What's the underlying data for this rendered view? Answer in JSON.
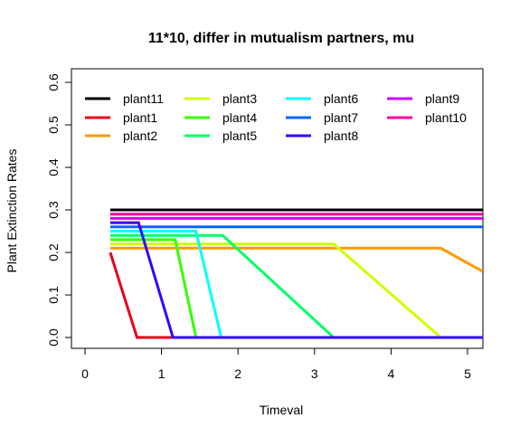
{
  "chart_data": {
    "type": "line",
    "title": "11*10, differ in mutualism partners, mu",
    "xlabel": "Timeval",
    "ylabel": "Plant Extinction Rates",
    "xlim": [
      0,
      5.2
    ],
    "ylim": [
      0,
      0.62
    ],
    "xticks": [
      "0",
      "1",
      "2",
      "3",
      "4",
      "5"
    ],
    "yticks": [
      "0.0",
      "0.1",
      "0.2",
      "0.3",
      "0.4",
      "0.5",
      "0.6"
    ],
    "legend_position": "top-left",
    "series": [
      {
        "name": "plant11",
        "color": "#000000",
        "points": [
          [
            0.33,
            0.3
          ],
          [
            5.2,
            0.3
          ]
        ]
      },
      {
        "name": "plant1",
        "color": "#E6001A",
        "points": [
          [
            0.33,
            0.2
          ],
          [
            0.68,
            0.0
          ],
          [
            5.2,
            0.0
          ]
        ]
      },
      {
        "name": "plant2",
        "color": "#FF9900",
        "points": [
          [
            0.33,
            0.21
          ],
          [
            4.65,
            0.21
          ],
          [
            5.2,
            0.155
          ]
        ]
      },
      {
        "name": "plant3",
        "color": "#CCFF00",
        "points": [
          [
            0.33,
            0.22
          ],
          [
            3.25,
            0.22
          ],
          [
            4.65,
            0.0
          ],
          [
            5.2,
            0.0
          ]
        ]
      },
      {
        "name": "plant4",
        "color": "#33FF00",
        "points": [
          [
            0.33,
            0.23
          ],
          [
            1.18,
            0.23
          ],
          [
            1.45,
            0.0
          ],
          [
            5.2,
            0.0
          ]
        ]
      },
      {
        "name": "plant5",
        "color": "#00FF66",
        "points": [
          [
            0.33,
            0.24
          ],
          [
            1.8,
            0.24
          ],
          [
            3.25,
            0.0
          ],
          [
            5.2,
            0.0
          ]
        ]
      },
      {
        "name": "plant6",
        "color": "#00FFFF",
        "points": [
          [
            0.33,
            0.25
          ],
          [
            1.45,
            0.25
          ],
          [
            1.78,
            0.0
          ],
          [
            5.2,
            0.0
          ]
        ]
      },
      {
        "name": "plant7",
        "color": "#0066FF",
        "points": [
          [
            0.33,
            0.26
          ],
          [
            5.2,
            0.26
          ]
        ]
      },
      {
        "name": "plant8",
        "color": "#3300FF",
        "points": [
          [
            0.33,
            0.27
          ],
          [
            0.7,
            0.27
          ],
          [
            1.15,
            0.0
          ],
          [
            5.2,
            0.0
          ]
        ]
      },
      {
        "name": "plant9",
        "color": "#CC00FF",
        "points": [
          [
            0.33,
            0.28
          ],
          [
            5.2,
            0.28
          ]
        ]
      },
      {
        "name": "plant10",
        "color": "#FF0099",
        "points": [
          [
            0.33,
            0.29
          ],
          [
            5.2,
            0.29
          ]
        ]
      }
    ]
  }
}
